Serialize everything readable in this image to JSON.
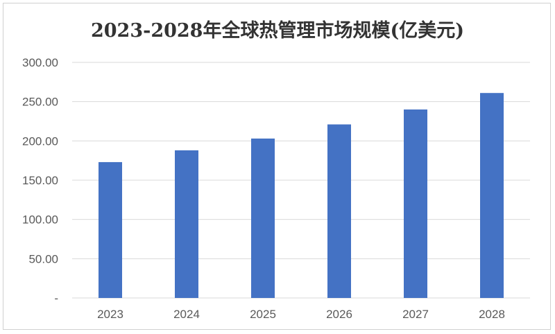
{
  "chart_data": {
    "type": "bar",
    "title": "2023-2028年全球热管理市场规模(亿美元)",
    "categories": [
      "2023",
      "2024",
      "2025",
      "2026",
      "2027",
      "2028"
    ],
    "values": [
      173,
      188,
      203,
      221,
      240,
      261
    ],
    "ylim": [
      0,
      300
    ],
    "yticks": [
      0,
      50,
      100,
      150,
      200,
      250,
      300
    ],
    "ytick_labels": [
      "-",
      "50.00",
      "100.00",
      "150.00",
      "200.00",
      "250.00",
      "300.00"
    ],
    "grid": true,
    "legend": "none",
    "bar_color": "#4472c4",
    "grid_color": "#d9d9d9"
  }
}
